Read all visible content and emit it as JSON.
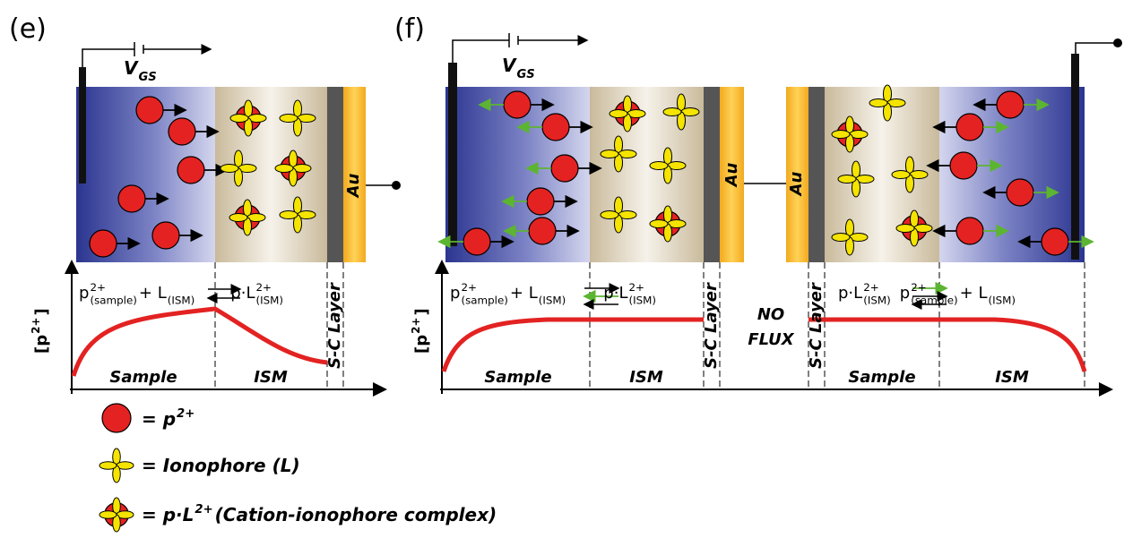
{
  "panel_e": {
    "label": "(e)",
    "vgs": {
      "v": "V",
      "sub": "GS"
    },
    "electrode": "Au",
    "reaction": {
      "p": "p",
      "p_sup": "2+",
      "p_sub": "(sample)",
      "plus_l": "+ L",
      "l_sub": "(ISM)",
      "complex": "p·L",
      "complex_sup": "2+",
      "complex_sub": "(ISM)"
    },
    "y_axis": {
      "open": "[p",
      "sup": "2+",
      "close": "]"
    },
    "regions": [
      "Sample",
      "ISM",
      "S-C Layer"
    ]
  },
  "panel_f": {
    "label": "(f)",
    "vgs": {
      "v": "V",
      "sub": "GS"
    },
    "electrodes": [
      "Au",
      "Au"
    ],
    "reaction_left": {
      "p": "p",
      "p_sup": "2+",
      "p_sub": "(sample)",
      "plus_l": "+ L",
      "l_sub": "(ISM)",
      "complex": "p·L",
      "complex_sup": "2+",
      "complex_sub": "(ISM)"
    },
    "reaction_right": {
      "complex": "p·L",
      "complex_sup": "2+",
      "complex_sub": "(ISM)",
      "p": "p",
      "p_sup": "2+",
      "p_sub": "(sample)",
      "plus_l": "+ L",
      "l_sub": "(ISM)"
    },
    "y_axis": {
      "open": "[p",
      "sup": "2+",
      "close": "]"
    },
    "regions_left": [
      "Sample",
      "ISM",
      "S-C Layer"
    ],
    "center": [
      "NO",
      "FLUX"
    ],
    "regions_right": [
      "S-C Layer",
      "Sample",
      "ISM"
    ]
  },
  "legend": [
    {
      "text": "= p",
      "sup": "2+"
    },
    {
      "text": "= Ionophore (L)"
    },
    {
      "text": "= p·L",
      "sup": "2+",
      "rest": " (Cation-ionophore complex)"
    }
  ]
}
